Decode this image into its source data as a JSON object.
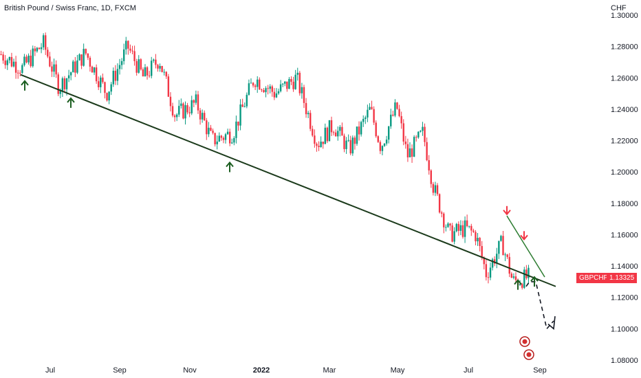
{
  "chart_data": {
    "type": "candlestick",
    "title": "British Pound / Swiss Franc, 1D, FXCM",
    "currency": "CHF",
    "symbol": "GBPCHF",
    "last_price": "1.13325",
    "y_ticks": [
      "1.30000",
      "1.28000",
      "1.26000",
      "1.24000",
      "1.22000",
      "1.20000",
      "1.18000",
      "1.16000",
      "1.14000",
      "1.12000",
      "1.10000",
      "1.08000"
    ],
    "x_ticks": [
      {
        "label": "Jul",
        "bold": false
      },
      {
        "label": "Sep",
        "bold": false
      },
      {
        "label": "Nov",
        "bold": false
      },
      {
        "label": "2022",
        "bold": true
      },
      {
        "label": "Mar",
        "bold": false
      },
      {
        "label": "May",
        "bold": false
      },
      {
        "label": "Jul",
        "bold": false
      },
      {
        "label": "Sep",
        "bold": false
      }
    ],
    "y_range": [
      1.08,
      1.3
    ],
    "price_path": [
      [
        0,
        1.275
      ],
      [
        0.04,
        1.266
      ],
      [
        0.08,
        1.282
      ],
      [
        0.11,
        1.254
      ],
      [
        0.16,
        1.276
      ],
      [
        0.2,
        1.25
      ],
      [
        0.24,
        1.28
      ],
      [
        0.27,
        1.26
      ],
      [
        0.3,
        1.272
      ],
      [
        0.33,
        1.236
      ],
      [
        0.37,
        1.244
      ],
      [
        0.4,
        1.22
      ],
      [
        0.44,
        1.225
      ],
      [
        0.48,
        1.26
      ],
      [
        0.52,
        1.25
      ],
      [
        0.56,
        1.26
      ],
      [
        0.6,
        1.218
      ],
      [
        0.63,
        1.23
      ],
      [
        0.66,
        1.214
      ],
      [
        0.7,
        1.24
      ],
      [
        0.72,
        1.216
      ],
      [
        0.75,
        1.242
      ],
      [
        0.77,
        1.21
      ],
      [
        0.8,
        1.225
      ],
      [
        0.82,
        1.19
      ],
      [
        0.85,
        1.16
      ],
      [
        0.88,
        1.164
      ],
      [
        0.9,
        1.16
      ],
      [
        0.92,
        1.135
      ],
      [
        0.95,
        1.155
      ],
      [
        0.97,
        1.13
      ],
      [
        1.0,
        1.133
      ]
    ],
    "trendlines": {
      "support": {
        "from": [
          0.0,
          1.262
        ],
        "to": [
          1.0,
          1.127
        ]
      },
      "resistance": {
        "from": [
          0.0,
          1.172
        ],
        "to": [
          1.0,
          1.133
        ]
      }
    },
    "forecast_path": {
      "from": [
        0.0,
        1.127
      ],
      "points": [
        [
          0.0,
          1.127
        ],
        [
          0.12,
          1.13
        ],
        [
          0.35,
          1.13
        ],
        [
          0.75,
          1.1
        ],
        [
          1.0,
          1.105
        ]
      ]
    },
    "markers_up": 5,
    "markers_down": 2
  }
}
